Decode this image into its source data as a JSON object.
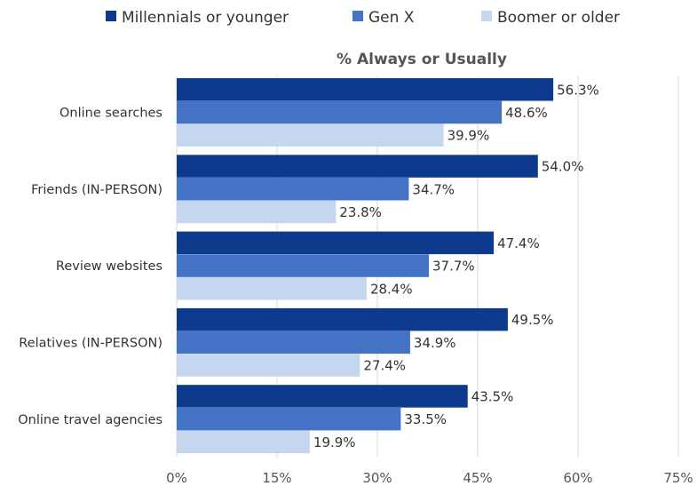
{
  "chart_data": {
    "type": "bar",
    "orientation": "horizontal",
    "title": "% Always or Usually",
    "categories": [
      "Online searches",
      "Friends (IN-PERSON)",
      "Review websites",
      "Relatives (IN-PERSON)",
      "Online travel agencies"
    ],
    "series": [
      {
        "name": "Millennials or younger",
        "color": "#0D3A8C",
        "values": [
          56.3,
          54.0,
          47.4,
          49.5,
          43.5
        ]
      },
      {
        "name": "Gen X",
        "color": "#4472C4",
        "values": [
          48.6,
          34.7,
          37.7,
          34.9,
          33.5
        ]
      },
      {
        "name": "Boomer or older",
        "color": "#C5D6EF",
        "values": [
          39.9,
          23.8,
          28.4,
          27.4,
          19.9
        ]
      }
    ],
    "xlim": [
      0,
      75
    ],
    "xticks": [
      0,
      15,
      30,
      45,
      60,
      75
    ],
    "tick_suffix": "%",
    "value_suffix": "%",
    "grid": true,
    "legend_position": "top"
  }
}
